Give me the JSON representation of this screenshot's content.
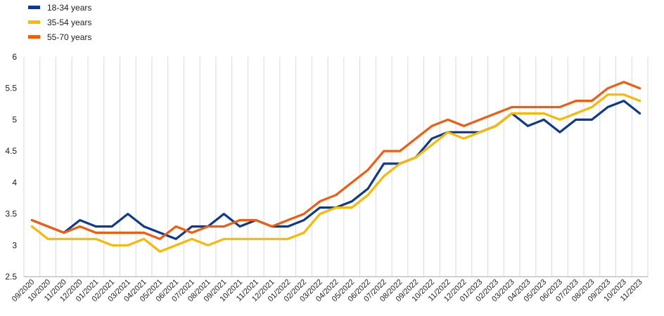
{
  "chart_data": {
    "type": "line",
    "title": "",
    "xlabel": "",
    "ylabel": "",
    "ylim": [
      2.5,
      6
    ],
    "yticks": [
      "2.5",
      "3",
      "3.5",
      "4",
      "4.5",
      "5",
      "5.5",
      "6"
    ],
    "grid": "vertical",
    "legend_position": "top-left",
    "categories": [
      "09/2020",
      "10/2020",
      "11/2020",
      "12/2020",
      "01/2021",
      "02/2021",
      "03/2021",
      "04/2021",
      "05/2021",
      "06/2021",
      "07/2021",
      "08/2021",
      "09/2021",
      "10/2021",
      "11/2021",
      "12/2021",
      "01/2022",
      "02/2022",
      "03/2022",
      "04/2022",
      "05/2022",
      "06/2022",
      "07/2022",
      "08/2022",
      "09/2022",
      "10/2022",
      "11/2022",
      "12/2022",
      "01/2023",
      "02/2023",
      "03/2023",
      "04/2023",
      "05/2023",
      "06/2023",
      "07/2023",
      "08/2023",
      "09/2023",
      "10/2023",
      "11/2023"
    ],
    "series": [
      {
        "name": "18-34 years",
        "color": "#0d3a8e",
        "values": [
          3.4,
          3.3,
          3.2,
          3.4,
          3.3,
          3.3,
          3.5,
          3.3,
          3.2,
          3.1,
          3.3,
          3.3,
          3.5,
          3.3,
          3.4,
          3.3,
          3.3,
          3.4,
          3.6,
          3.6,
          3.7,
          3.9,
          4.3,
          4.3,
          4.4,
          4.7,
          4.8,
          4.8,
          4.8,
          4.9,
          5.1,
          4.9,
          5.0,
          4.8,
          5.0,
          5.0,
          5.2,
          5.3,
          5.1
        ]
      },
      {
        "name": "35-54 years",
        "color": "#fbb800",
        "values": [
          3.3,
          3.1,
          3.1,
          3.1,
          3.1,
          3.0,
          3.0,
          3.1,
          2.9,
          3.0,
          3.1,
          3.0,
          3.1,
          3.1,
          3.1,
          3.1,
          3.1,
          3.2,
          3.5,
          3.6,
          3.6,
          3.8,
          4.1,
          4.3,
          4.4,
          4.6,
          4.8,
          4.7,
          4.8,
          4.9,
          5.1,
          5.1,
          5.1,
          5.0,
          5.1,
          5.2,
          5.4,
          5.4,
          5.3
        ]
      },
      {
        "name": "55-70 years",
        "color": "#f25c0f",
        "values": [
          3.4,
          3.3,
          3.2,
          3.3,
          3.2,
          3.2,
          3.2,
          3.2,
          3.1,
          3.3,
          3.2,
          3.3,
          3.3,
          3.4,
          3.4,
          3.3,
          3.4,
          3.5,
          3.7,
          3.8,
          4.0,
          4.2,
          4.5,
          4.5,
          4.7,
          4.9,
          5.0,
          4.9,
          5.0,
          5.1,
          5.2,
          5.2,
          5.2,
          5.2,
          5.3,
          5.3,
          5.5,
          5.6,
          5.5
        ]
      }
    ]
  }
}
